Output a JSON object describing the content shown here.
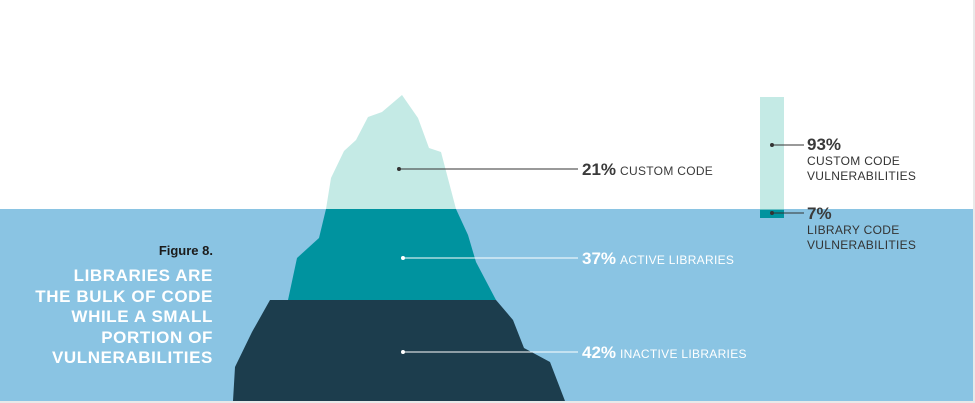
{
  "figure": {
    "label": "Figure 8.",
    "title_lines": [
      "LIBRARIES ARE",
      "THE BULK OF CODE",
      "WHILE  A SMALL",
      "PORTION OF",
      "VULNERABILITIES"
    ]
  },
  "colors": {
    "water": "#8ac4e3",
    "custom_code": "#c4eae5",
    "active_libraries": "#00939f",
    "inactive_libraries": "#1c3d4d",
    "leader_dark": "#333333",
    "leader_light": "#ffffff"
  },
  "chart_data": [
    {
      "type": "area",
      "title": "",
      "categories": [
        "CUSTOM CODE",
        "ACTIVE LIBRARIES",
        "INACTIVE LIBRARIES"
      ],
      "values": [
        21,
        37,
        42
      ],
      "value_labels": [
        "21%",
        "37%",
        "42%"
      ],
      "unit": "%"
    },
    {
      "type": "bar",
      "title": "",
      "categories": [
        "CUSTOM CODE VULNERABILITIES",
        "LIBRARY CODE VULNERABILITIES"
      ],
      "values": [
        93,
        7
      ],
      "value_labels": [
        "93%",
        "7%"
      ],
      "label_lines": [
        [
          "CUSTOM CODE",
          "VULNERABILITIES"
        ],
        [
          "LIBRARY CODE",
          "VULNERABILITIES"
        ]
      ],
      "unit": "%",
      "stacked": true
    }
  ]
}
